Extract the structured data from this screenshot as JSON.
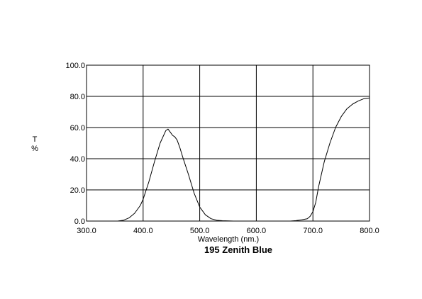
{
  "chart_data": {
    "type": "line",
    "title": "195 Zenith Blue",
    "xlabel": "Wavelength (nm.)",
    "ylabel_lines": [
      "T",
      "%"
    ],
    "xlim": [
      300,
      800
    ],
    "ylim": [
      0,
      100
    ],
    "x_ticks": [
      "300.0",
      "400.0",
      "500.0",
      "600.0",
      "700.0",
      "800.0"
    ],
    "y_ticks": [
      "0.0",
      "20.0",
      "40.0",
      "60.0",
      "80.0",
      "100.0"
    ],
    "grid": true,
    "series": [
      {
        "color": "#000000",
        "x": [
          355,
          365,
          375,
          385,
          395,
          400,
          410,
          420,
          430,
          440,
          444,
          448,
          452,
          456,
          460,
          465,
          470,
          480,
          490,
          500,
          510,
          520,
          530,
          540,
          550,
          560,
          570,
          580,
          600,
          620,
          640,
          660,
          670,
          680,
          690,
          695,
          700,
          705,
          710,
          720,
          730,
          740,
          750,
          760,
          770,
          780,
          790,
          800
        ],
        "y": [
          0.0,
          0.5,
          2.0,
          5.0,
          10.0,
          14.0,
          25.0,
          38.0,
          50.0,
          58.0,
          59.0,
          57.0,
          55.0,
          54.0,
          52.0,
          47.0,
          41.0,
          30.0,
          18.0,
          9.0,
          4.0,
          1.5,
          0.5,
          0.2,
          0.1,
          0.0,
          0.0,
          0.0,
          0.0,
          0.0,
          0.0,
          0.0,
          0.3,
          0.8,
          1.5,
          3.0,
          6.0,
          12.0,
          22.0,
          38.0,
          50.0,
          60.0,
          67.0,
          72.0,
          75.0,
          77.0,
          78.5,
          79.0
        ]
      }
    ]
  }
}
